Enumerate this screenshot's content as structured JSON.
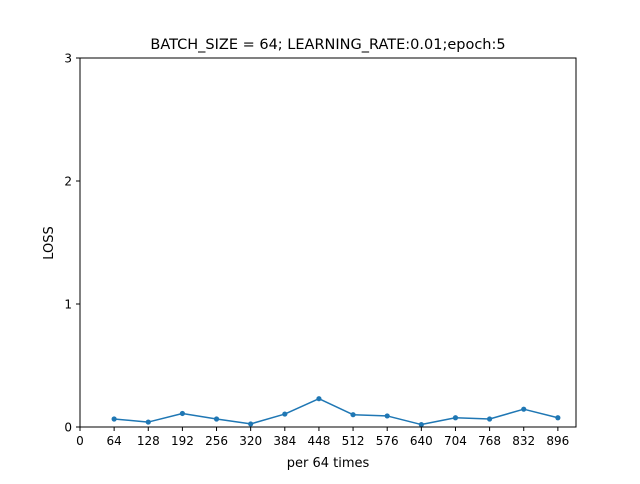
{
  "chart_data": {
    "type": "line",
    "title": "BATCH_SIZE = 64; LEARNING_RATE:0.01;epoch:5",
    "xlabel": "per 64 times",
    "ylabel": "LOSS",
    "xlim": [
      0,
      930
    ],
    "ylim": [
      0,
      3
    ],
    "x_ticks": [
      0,
      64,
      128,
      192,
      256,
      320,
      384,
      448,
      512,
      576,
      640,
      704,
      768,
      832,
      896
    ],
    "y_ticks": [
      0,
      1,
      2,
      3
    ],
    "grid": false,
    "legend": "none",
    "series": [
      {
        "color": "#1f77b4",
        "marker": "dot",
        "x": [
          64,
          128,
          192,
          256,
          320,
          384,
          448,
          512,
          576,
          640,
          704,
          768,
          832,
          896
        ],
        "values": [
          0.065,
          0.04,
          0.11,
          0.065,
          0.025,
          0.105,
          0.23,
          0.1,
          0.09,
          0.02,
          0.075,
          0.065,
          0.145,
          0.075
        ]
      }
    ]
  }
}
